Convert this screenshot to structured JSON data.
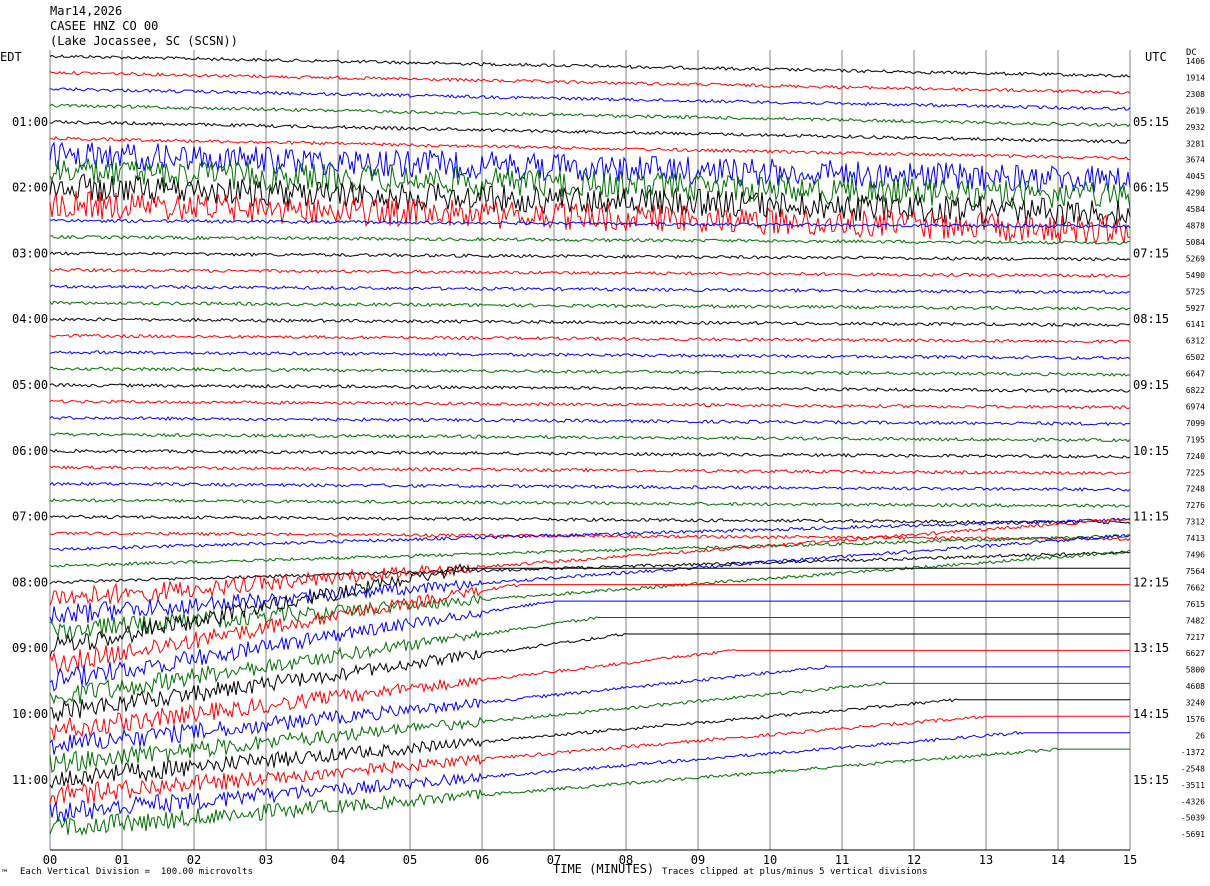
{
  "header": {
    "date": "Mar14,2026",
    "station": "CASEE HNZ CO 00",
    "location": "(Lake Jocassee, SC (SCSN))"
  },
  "left_tz": "EDT",
  "right_tz": "UTC",
  "dc_label": "DC",
  "footer": {
    "scale_note": "Each Vertical Division =  100.00 microvolts",
    "clip_note": "Traces clipped at plus/minus 5 vertical divisions",
    "x_title": "TIME (MINUTES)",
    "corner_mark": "™"
  },
  "colors": {
    "trace_cycle": [
      "#000000",
      "#ff0000",
      "#0000ff",
      "#007000"
    ],
    "grid": "#808080"
  },
  "chart_data": {
    "type": "line",
    "title": "",
    "xlabel": "TIME (MINUTES)",
    "xlim": [
      0,
      15
    ],
    "x_ticks": [
      "00",
      "01",
      "02",
      "03",
      "04",
      "05",
      "06",
      "07",
      "08",
      "09",
      "10",
      "11",
      "12",
      "13",
      "14",
      "15"
    ],
    "left_time_labels": [
      "01:00",
      "02:00",
      "03:00",
      "04:00",
      "05:00",
      "06:00",
      "07:00",
      "08:00",
      "09:00",
      "10:00",
      "11:00"
    ],
    "right_time_labels": [
      "05:15",
      "06:15",
      "07:15",
      "08:15",
      "09:15",
      "10:15",
      "11:15",
      "12:15",
      "13:15",
      "14:15",
      "15:15"
    ],
    "dc_offsets": [
      "1406",
      "1914",
      "2308",
      "2619",
      "2932",
      "3281",
      "3674",
      "4045",
      "4290",
      "4584",
      "4878",
      "5084",
      "5269",
      "5490",
      "5725",
      "5927",
      "6141",
      "6312",
      "6502",
      "6647",
      "6822",
      "6974",
      "7099",
      "7195",
      "7240",
      "7225",
      "7248",
      "7276",
      "7312",
      "7413",
      "7496",
      "7564",
      "7662",
      "7615",
      "7482",
      "7217",
      "6627",
      "5800",
      "4608",
      "3240",
      "1576",
      "26",
      "-1372",
      "-2548",
      "-3511",
      "-4326",
      "-5039",
      "-5691"
    ],
    "trace_count": 48,
    "grid": true
  }
}
